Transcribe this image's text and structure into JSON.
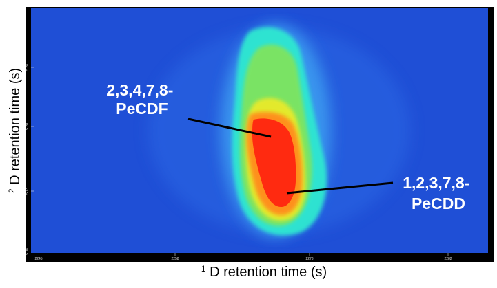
{
  "chart_data": {
    "type": "heatmap",
    "xlabel": {
      "superscript": "1",
      "text": "D retention time (s)"
    },
    "ylabel": {
      "superscript": "2",
      "text": "D retention time (s)"
    },
    "x_ticks": [
      "2245",
      "2258",
      "2273",
      "2282"
    ],
    "y_ticks": [
      "5.04",
      "5.13",
      "5.20",
      "5.28"
    ],
    "colormap": [
      "#1f4fd6",
      "#2f7be8",
      "#39b8ee",
      "#2de8d0",
      "#46f2a1",
      "#8ee85c",
      "#e9ea2c",
      "#ff8f1e",
      "#ff2a10"
    ],
    "background_color": "#1f4fd6",
    "annotations": [
      {
        "name": "peak-annotation-pecdf",
        "label_lines": [
          "2,3,4,7,8-",
          "PeCDF"
        ],
        "label_color": "#ffffff"
      },
      {
        "name": "peak-annotation-pecdd",
        "label_lines": [
          "1,2,3,7,8-",
          "PeCDD"
        ],
        "label_color": "#ffffff"
      }
    ]
  }
}
